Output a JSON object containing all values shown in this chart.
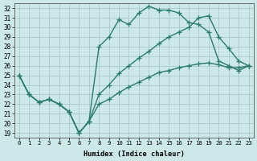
{
  "xlabel": "Humidex (Indice chaleur)",
  "bg_color": "#cce8e8",
  "line_color": "#2d7a6f",
  "grid_color": "#aacece",
  "xlim": [
    -0.5,
    23.5
  ],
  "ylim": [
    18.5,
    32.5
  ],
  "xticks": [
    0,
    1,
    2,
    3,
    4,
    5,
    6,
    7,
    8,
    9,
    10,
    11,
    12,
    13,
    14,
    15,
    16,
    17,
    18,
    19,
    20,
    21,
    22,
    23
  ],
  "yticks": [
    19,
    20,
    21,
    22,
    23,
    24,
    25,
    26,
    27,
    28,
    29,
    30,
    31,
    32
  ],
  "line1_x": [
    0,
    1,
    2,
    3,
    4,
    5,
    6,
    7,
    8,
    9,
    10,
    11,
    12,
    13,
    14,
    15,
    16,
    17,
    18,
    19,
    20,
    21,
    22,
    23
  ],
  "line1_y": [
    25.0,
    23.0,
    22.2,
    22.5,
    22.0,
    21.2,
    19.0,
    20.2,
    28.0,
    29.0,
    30.8,
    30.3,
    31.5,
    32.2,
    31.8,
    31.8,
    31.5,
    30.5,
    30.3,
    29.5,
    26.5,
    26.0,
    25.5,
    26.0
  ],
  "line2_x": [
    0,
    1,
    2,
    3,
    4,
    5,
    6,
    7,
    8,
    9,
    10,
    11,
    12,
    13,
    14,
    15,
    16,
    17,
    18,
    19,
    20,
    21,
    22,
    23
  ],
  "line2_y": [
    25.0,
    23.0,
    22.2,
    22.5,
    22.0,
    21.2,
    19.0,
    20.2,
    23.0,
    24.0,
    25.2,
    26.0,
    26.8,
    27.5,
    28.3,
    29.0,
    29.5,
    30.0,
    31.0,
    31.2,
    29.0,
    27.8,
    26.5,
    26.0
  ],
  "line3_x": [
    0,
    1,
    2,
    3,
    4,
    5,
    6,
    7,
    8,
    9,
    10,
    11,
    12,
    13,
    14,
    15,
    16,
    17,
    18,
    19,
    20,
    21,
    22,
    23
  ],
  "line3_y": [
    25.0,
    23.0,
    22.2,
    22.5,
    22.0,
    21.2,
    19.0,
    20.2,
    22.0,
    22.5,
    23.2,
    23.8,
    24.3,
    24.8,
    25.3,
    25.5,
    25.8,
    26.0,
    26.2,
    26.3,
    26.1,
    25.8,
    25.8,
    26.0
  ],
  "linewidth": 1.0,
  "markersize": 4
}
